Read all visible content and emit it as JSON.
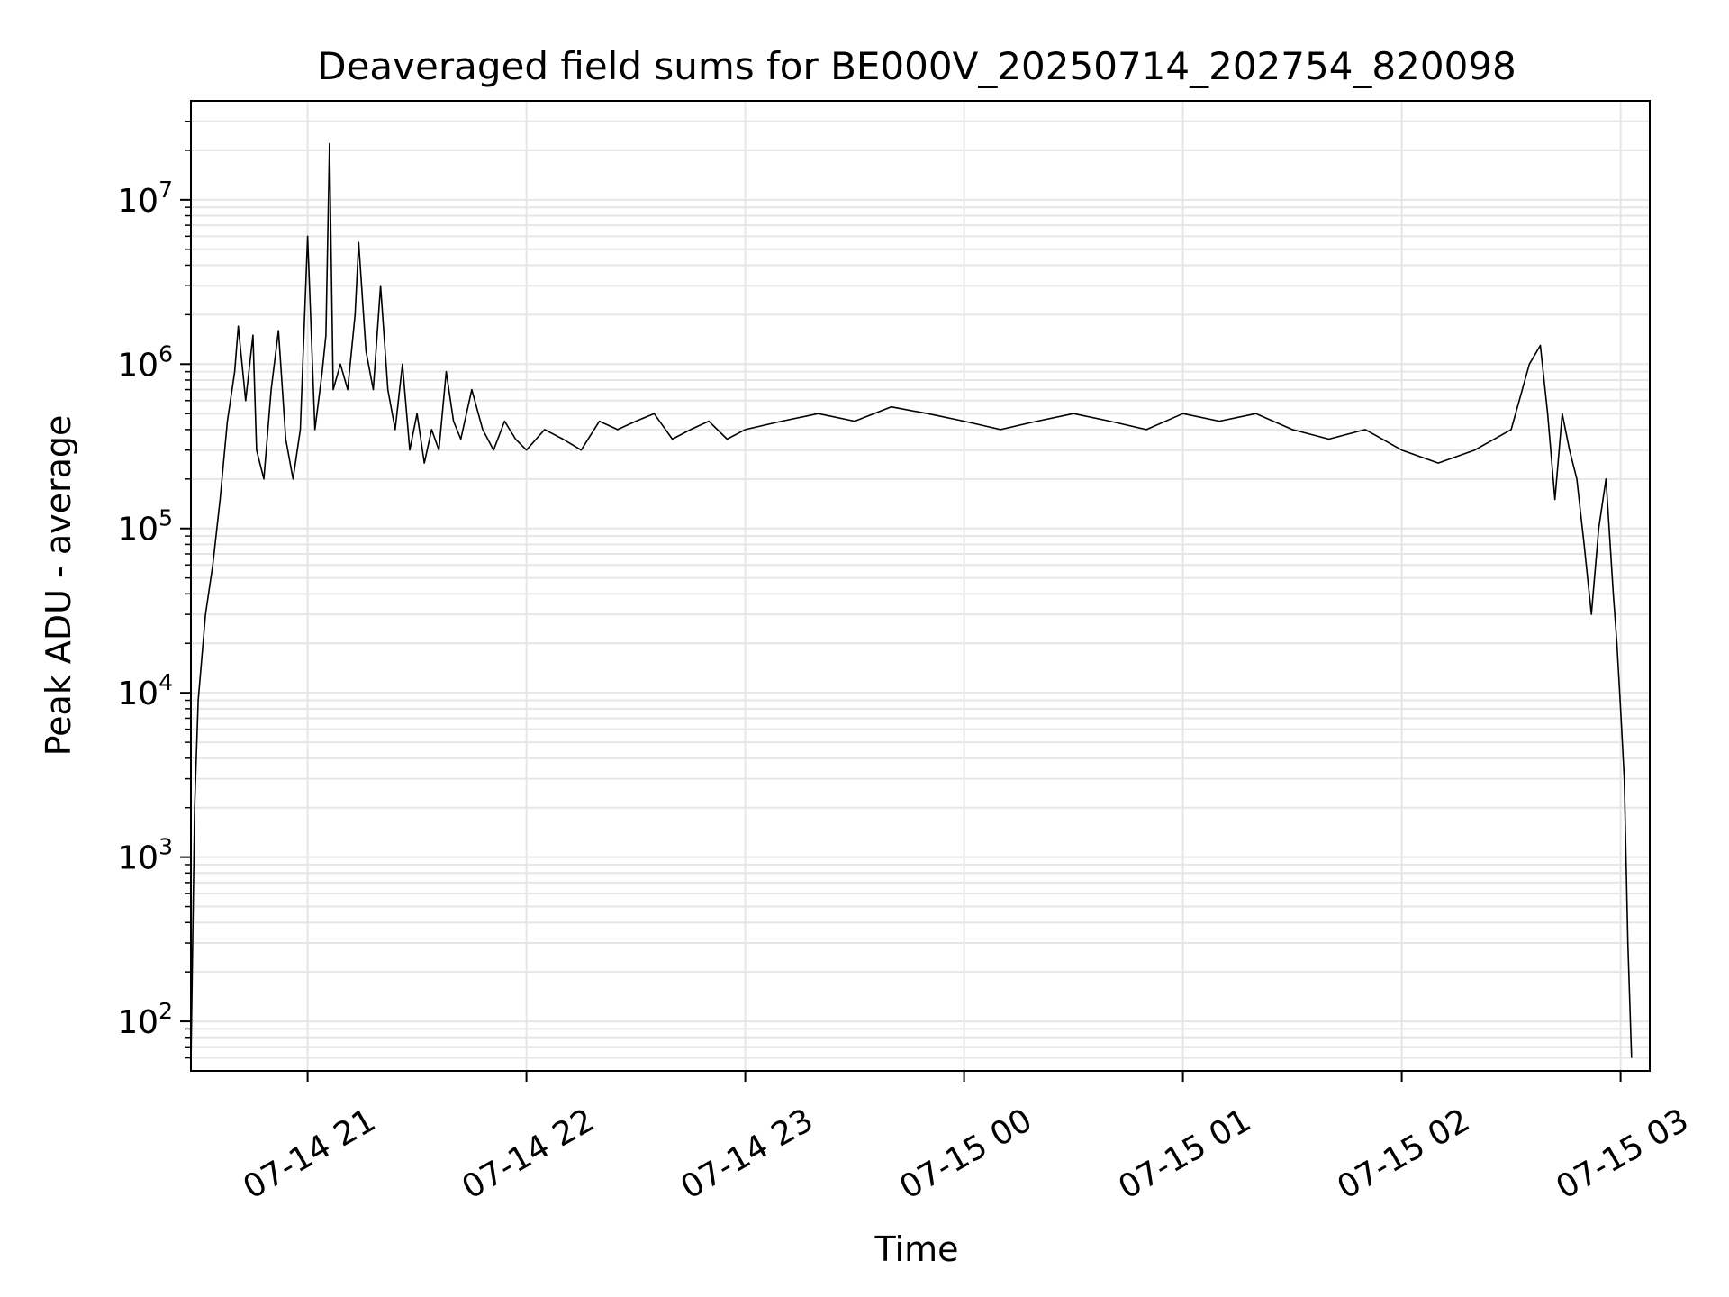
{
  "chart_data": {
    "type": "line",
    "title": "Deaveraged field sums for BE000V_20250714_202754_820098",
    "xlabel": "Time",
    "ylabel": "Peak ADU - average",
    "yscale": "log",
    "ylim": [
      50,
      40000000
    ],
    "xlim": [
      "2025-07-14 20:28",
      "2025-07-15 03:08"
    ],
    "grid": true,
    "line_color": "#000000",
    "grid_color": "#e6e6e6",
    "x_ticks": [
      {
        "t": "2025-07-14 21:00",
        "label": "07-14 21"
      },
      {
        "t": "2025-07-14 22:00",
        "label": "07-14 22"
      },
      {
        "t": "2025-07-14 23:00",
        "label": "07-14 23"
      },
      {
        "t": "2025-07-15 00:00",
        "label": "07-15 00"
      },
      {
        "t": "2025-07-15 01:00",
        "label": "07-15 01"
      },
      {
        "t": "2025-07-15 02:00",
        "label": "07-15 02"
      },
      {
        "t": "2025-07-15 03:00",
        "label": "07-15 03"
      }
    ],
    "y_ticks": [
      {
        "value": 100,
        "base": "10",
        "exp": "2"
      },
      {
        "value": 1000,
        "base": "10",
        "exp": "3"
      },
      {
        "value": 10000,
        "base": "10",
        "exp": "4"
      },
      {
        "value": 100000,
        "base": "10",
        "exp": "5"
      },
      {
        "value": 1000000,
        "base": "10",
        "exp": "6"
      },
      {
        "value": 10000000,
        "base": "10",
        "exp": "7"
      }
    ],
    "series": [
      {
        "points": [
          [
            "2025-07-14 20:28",
            55
          ],
          [
            "2025-07-14 20:29",
            2000
          ],
          [
            "2025-07-14 20:30",
            9000
          ],
          [
            "2025-07-14 20:32",
            30000
          ],
          [
            "2025-07-14 20:34",
            60000
          ],
          [
            "2025-07-14 20:36",
            150000
          ],
          [
            "2025-07-14 20:38",
            450000
          ],
          [
            "2025-07-14 20:40",
            900000
          ],
          [
            "2025-07-14 20:41",
            1700000
          ],
          [
            "2025-07-14 20:43",
            600000
          ],
          [
            "2025-07-14 20:45",
            1500000
          ],
          [
            "2025-07-14 20:46",
            300000
          ],
          [
            "2025-07-14 20:48",
            200000
          ],
          [
            "2025-07-14 20:50",
            700000
          ],
          [
            "2025-07-14 20:52",
            1600000
          ],
          [
            "2025-07-14 20:54",
            350000
          ],
          [
            "2025-07-14 20:56",
            200000
          ],
          [
            "2025-07-14 20:58",
            400000
          ],
          [
            "2025-07-14 21:00",
            6000000
          ],
          [
            "2025-07-14 21:02",
            400000
          ],
          [
            "2025-07-14 21:04",
            900000
          ],
          [
            "2025-07-14 21:05",
            1500000
          ],
          [
            "2025-07-14 21:06",
            22000000
          ],
          [
            "2025-07-14 21:07",
            700000
          ],
          [
            "2025-07-14 21:09",
            1000000
          ],
          [
            "2025-07-14 21:11",
            700000
          ],
          [
            "2025-07-14 21:13",
            2000000
          ],
          [
            "2025-07-14 21:14",
            5500000
          ],
          [
            "2025-07-14 21:16",
            1200000
          ],
          [
            "2025-07-14 21:18",
            700000
          ],
          [
            "2025-07-14 21:20",
            3000000
          ],
          [
            "2025-07-14 21:22",
            700000
          ],
          [
            "2025-07-14 21:24",
            400000
          ],
          [
            "2025-07-14 21:26",
            1000000
          ],
          [
            "2025-07-14 21:28",
            300000
          ],
          [
            "2025-07-14 21:30",
            500000
          ],
          [
            "2025-07-14 21:32",
            250000
          ],
          [
            "2025-07-14 21:34",
            400000
          ],
          [
            "2025-07-14 21:36",
            300000
          ],
          [
            "2025-07-14 21:38",
            900000
          ],
          [
            "2025-07-14 21:40",
            450000
          ],
          [
            "2025-07-14 21:42",
            350000
          ],
          [
            "2025-07-14 21:45",
            700000
          ],
          [
            "2025-07-14 21:48",
            400000
          ],
          [
            "2025-07-14 21:51",
            300000
          ],
          [
            "2025-07-14 21:54",
            450000
          ],
          [
            "2025-07-14 21:57",
            350000
          ],
          [
            "2025-07-14 22:00",
            300000
          ],
          [
            "2025-07-14 22:05",
            400000
          ],
          [
            "2025-07-14 22:10",
            350000
          ],
          [
            "2025-07-14 22:15",
            300000
          ],
          [
            "2025-07-14 22:20",
            450000
          ],
          [
            "2025-07-14 22:25",
            400000
          ],
          [
            "2025-07-14 22:30",
            450000
          ],
          [
            "2025-07-14 22:35",
            500000
          ],
          [
            "2025-07-14 22:40",
            350000
          ],
          [
            "2025-07-14 22:45",
            400000
          ],
          [
            "2025-07-14 22:50",
            450000
          ],
          [
            "2025-07-14 22:55",
            350000
          ],
          [
            "2025-07-14 23:00",
            400000
          ],
          [
            "2025-07-14 23:10",
            450000
          ],
          [
            "2025-07-14 23:20",
            500000
          ],
          [
            "2025-07-14 23:30",
            450000
          ],
          [
            "2025-07-14 23:40",
            550000
          ],
          [
            "2025-07-14 23:50",
            500000
          ],
          [
            "2025-07-15 00:00",
            450000
          ],
          [
            "2025-07-15 00:10",
            400000
          ],
          [
            "2025-07-15 00:20",
            450000
          ],
          [
            "2025-07-15 00:30",
            500000
          ],
          [
            "2025-07-15 00:40",
            450000
          ],
          [
            "2025-07-15 00:50",
            400000
          ],
          [
            "2025-07-15 01:00",
            500000
          ],
          [
            "2025-07-15 01:10",
            450000
          ],
          [
            "2025-07-15 01:20",
            500000
          ],
          [
            "2025-07-15 01:30",
            400000
          ],
          [
            "2025-07-15 01:40",
            350000
          ],
          [
            "2025-07-15 01:50",
            400000
          ],
          [
            "2025-07-15 02:00",
            300000
          ],
          [
            "2025-07-15 02:10",
            250000
          ],
          [
            "2025-07-15 02:20",
            300000
          ],
          [
            "2025-07-15 02:30",
            400000
          ],
          [
            "2025-07-15 02:35",
            1000000
          ],
          [
            "2025-07-15 02:38",
            1300000
          ],
          [
            "2025-07-15 02:40",
            500000
          ],
          [
            "2025-07-15 02:42",
            150000
          ],
          [
            "2025-07-15 02:44",
            500000
          ],
          [
            "2025-07-15 02:46",
            300000
          ],
          [
            "2025-07-15 02:48",
            200000
          ],
          [
            "2025-07-15 02:50",
            80000
          ],
          [
            "2025-07-15 02:52",
            30000
          ],
          [
            "2025-07-15 02:54",
            100000
          ],
          [
            "2025-07-15 02:56",
            200000
          ],
          [
            "2025-07-15 02:58",
            40000
          ],
          [
            "2025-07-15 02:59",
            20000
          ],
          [
            "2025-07-15 03:00",
            8000
          ],
          [
            "2025-07-15 03:01",
            3000
          ],
          [
            "2025-07-15 03:02",
            300
          ],
          [
            "2025-07-15 03:03",
            60
          ]
        ]
      }
    ]
  }
}
